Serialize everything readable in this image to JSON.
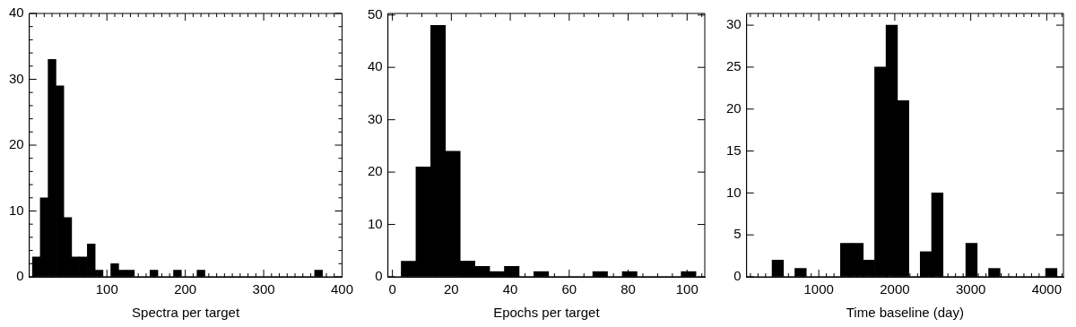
{
  "chart_data": [
    {
      "type": "histogram",
      "xlabel": "Spectra per target",
      "color": "#000000",
      "grid": false,
      "bins": [
        5,
        15,
        25,
        35,
        45,
        55,
        65,
        75,
        85,
        95,
        105,
        115,
        125,
        135,
        145,
        155,
        165,
        175,
        185,
        195,
        205,
        215,
        225,
        235,
        245,
        255,
        265,
        275,
        285,
        295,
        305,
        315,
        325,
        335,
        345,
        355,
        365,
        375
      ],
      "values": [
        3,
        12,
        33,
        29,
        9,
        3,
        3,
        5,
        1,
        0,
        2,
        1,
        1,
        0,
        0,
        1,
        0,
        0,
        1,
        0,
        0,
        1,
        0,
        0,
        0,
        0,
        0,
        0,
        0,
        0,
        0,
        0,
        0,
        0,
        0,
        0,
        1
      ],
      "xlim": [
        1,
        400
      ],
      "xticks": [
        {
          "value": 10,
          "label": null
        },
        {
          "value": 20,
          "label": null
        },
        {
          "value": 30,
          "label": null
        },
        {
          "value": 40,
          "label": null
        },
        {
          "value": 50,
          "label": null
        },
        {
          "value": 60,
          "label": null
        },
        {
          "value": 70,
          "label": null
        },
        {
          "value": 80,
          "label": null
        },
        {
          "value": 90,
          "label": null
        },
        100,
        {
          "value": 110,
          "label": null
        },
        {
          "value": 120,
          "label": null
        },
        {
          "value": 130,
          "label": null
        },
        {
          "value": 140,
          "label": null
        },
        {
          "value": 150,
          "label": null
        },
        {
          "value": 160,
          "label": null
        },
        {
          "value": 170,
          "label": null
        },
        {
          "value": 180,
          "label": null
        },
        {
          "value": 190,
          "label": null
        },
        200,
        {
          "value": 210,
          "label": null
        },
        {
          "value": 220,
          "label": null
        },
        {
          "value": 230,
          "label": null
        },
        {
          "value": 240,
          "label": null
        },
        {
          "value": 250,
          "label": null
        },
        {
          "value": 260,
          "label": null
        },
        {
          "value": 270,
          "label": null
        },
        {
          "value": 280,
          "label": null
        },
        {
          "value": 290,
          "label": null
        },
        300,
        {
          "value": 310,
          "label": null
        },
        {
          "value": 320,
          "label": null
        },
        {
          "value": 330,
          "label": null
        },
        {
          "value": 340,
          "label": null
        },
        {
          "value": 350,
          "label": null
        },
        {
          "value": 360,
          "label": null
        },
        {
          "value": 370,
          "label": null
        },
        {
          "value": 380,
          "label": null
        },
        {
          "value": 390,
          "label": null
        },
        400
      ],
      "ylim": [
        0,
        40
      ],
      "yticks": [
        0,
        {
          "value": 2,
          "label": null
        },
        {
          "value": 4,
          "label": null
        },
        {
          "value": 6,
          "label": null
        },
        {
          "value": 8,
          "label": null
        },
        10,
        {
          "value": 12,
          "label": null
        },
        {
          "value": 14,
          "label": null
        },
        {
          "value": 16,
          "label": null
        },
        {
          "value": 18,
          "label": null
        },
        20,
        {
          "value": 22,
          "label": null
        },
        {
          "value": 24,
          "label": null
        },
        {
          "value": 26,
          "label": null
        },
        {
          "value": 28,
          "label": null
        },
        30,
        {
          "value": 32,
          "label": null
        },
        {
          "value": 34,
          "label": null
        },
        {
          "value": 36,
          "label": null
        },
        {
          "value": 38,
          "label": null
        },
        40
      ]
    },
    {
      "type": "histogram",
      "xlabel": "Epochs per target",
      "color": "#000000",
      "grid": false,
      "bins": [
        3,
        8,
        13,
        18,
        23,
        28,
        33,
        38,
        43,
        48,
        53,
        58,
        63,
        68,
        73,
        78,
        83,
        88,
        93,
        98,
        103
      ],
      "values": [
        3,
        21,
        48,
        24,
        3,
        2,
        1,
        2,
        0,
        1,
        0,
        0,
        0,
        1,
        0,
        1,
        0,
        0,
        0,
        1
      ],
      "xlim": [
        -1.5,
        106
      ],
      "xticks": [
        0,
        {
          "value": 5,
          "label": null
        },
        {
          "value": 10,
          "label": null
        },
        {
          "value": 15,
          "label": null
        },
        20,
        {
          "value": 25,
          "label": null
        },
        {
          "value": 30,
          "label": null
        },
        {
          "value": 35,
          "label": null
        },
        40,
        {
          "value": 45,
          "label": null
        },
        {
          "value": 50,
          "label": null
        },
        {
          "value": 55,
          "label": null
        },
        60,
        {
          "value": 65,
          "label": null
        },
        {
          "value": 70,
          "label": null
        },
        {
          "value": 75,
          "label": null
        },
        80,
        {
          "value": 85,
          "label": null
        },
        {
          "value": 90,
          "label": null
        },
        {
          "value": 95,
          "label": null
        },
        100,
        {
          "value": 105,
          "label": null
        }
      ],
      "ylim": [
        0,
        50.3
      ],
      "yticks": [
        0,
        10,
        20,
        30,
        40,
        50
      ]
    },
    {
      "type": "histogram",
      "xlabel": "Time baseline (day)",
      "color": "#000000",
      "grid": false,
      "bins": [
        385,
        535,
        685,
        835,
        985,
        1135,
        1285,
        1435,
        1585,
        1735,
        1885,
        2035,
        2185,
        2335,
        2485,
        2635,
        2785,
        2935,
        3085,
        3235,
        3385,
        3535,
        3685,
        3835,
        3985,
        4135
      ],
      "values": [
        2,
        0,
        1,
        0,
        0,
        0,
        4,
        4,
        2,
        25,
        30,
        21,
        0,
        3,
        10,
        0,
        0,
        4,
        0,
        1,
        0,
        0,
        0,
        0,
        1
      ],
      "xlim": [
        50,
        4220
      ],
      "xticks": [
        {
          "value": 100,
          "label": null
        },
        {
          "value": 200,
          "label": null
        },
        {
          "value": 300,
          "label": null
        },
        {
          "value": 400,
          "label": null
        },
        {
          "value": 500,
          "label": null
        },
        {
          "value": 600,
          "label": null
        },
        {
          "value": 700,
          "label": null
        },
        {
          "value": 800,
          "label": null
        },
        {
          "value": 900,
          "label": null
        },
        1000,
        {
          "value": 1100,
          "label": null
        },
        {
          "value": 1200,
          "label": null
        },
        {
          "value": 1300,
          "label": null
        },
        {
          "value": 1400,
          "label": null
        },
        {
          "value": 1500,
          "label": null
        },
        {
          "value": 1600,
          "label": null
        },
        {
          "value": 1700,
          "label": null
        },
        {
          "value": 1800,
          "label": null
        },
        {
          "value": 1900,
          "label": null
        },
        2000,
        {
          "value": 2100,
          "label": null
        },
        {
          "value": 2200,
          "label": null
        },
        {
          "value": 2300,
          "label": null
        },
        {
          "value": 2400,
          "label": null
        },
        {
          "value": 2500,
          "label": null
        },
        {
          "value": 2600,
          "label": null
        },
        {
          "value": 2700,
          "label": null
        },
        {
          "value": 2800,
          "label": null
        },
        {
          "value": 2900,
          "label": null
        },
        3000,
        {
          "value": 3100,
          "label": null
        },
        {
          "value": 3200,
          "label": null
        },
        {
          "value": 3300,
          "label": null
        },
        {
          "value": 3400,
          "label": null
        },
        {
          "value": 3500,
          "label": null
        },
        {
          "value": 3600,
          "label": null
        },
        {
          "value": 3700,
          "label": null
        },
        {
          "value": 3800,
          "label": null
        },
        {
          "value": 3900,
          "label": null
        },
        4000,
        {
          "value": 4100,
          "label": null
        },
        {
          "value": 4200,
          "label": null
        }
      ],
      "ylim": [
        0,
        31.4
      ],
      "yticks": [
        0,
        5,
        10,
        15,
        20,
        25,
        30
      ]
    }
  ]
}
